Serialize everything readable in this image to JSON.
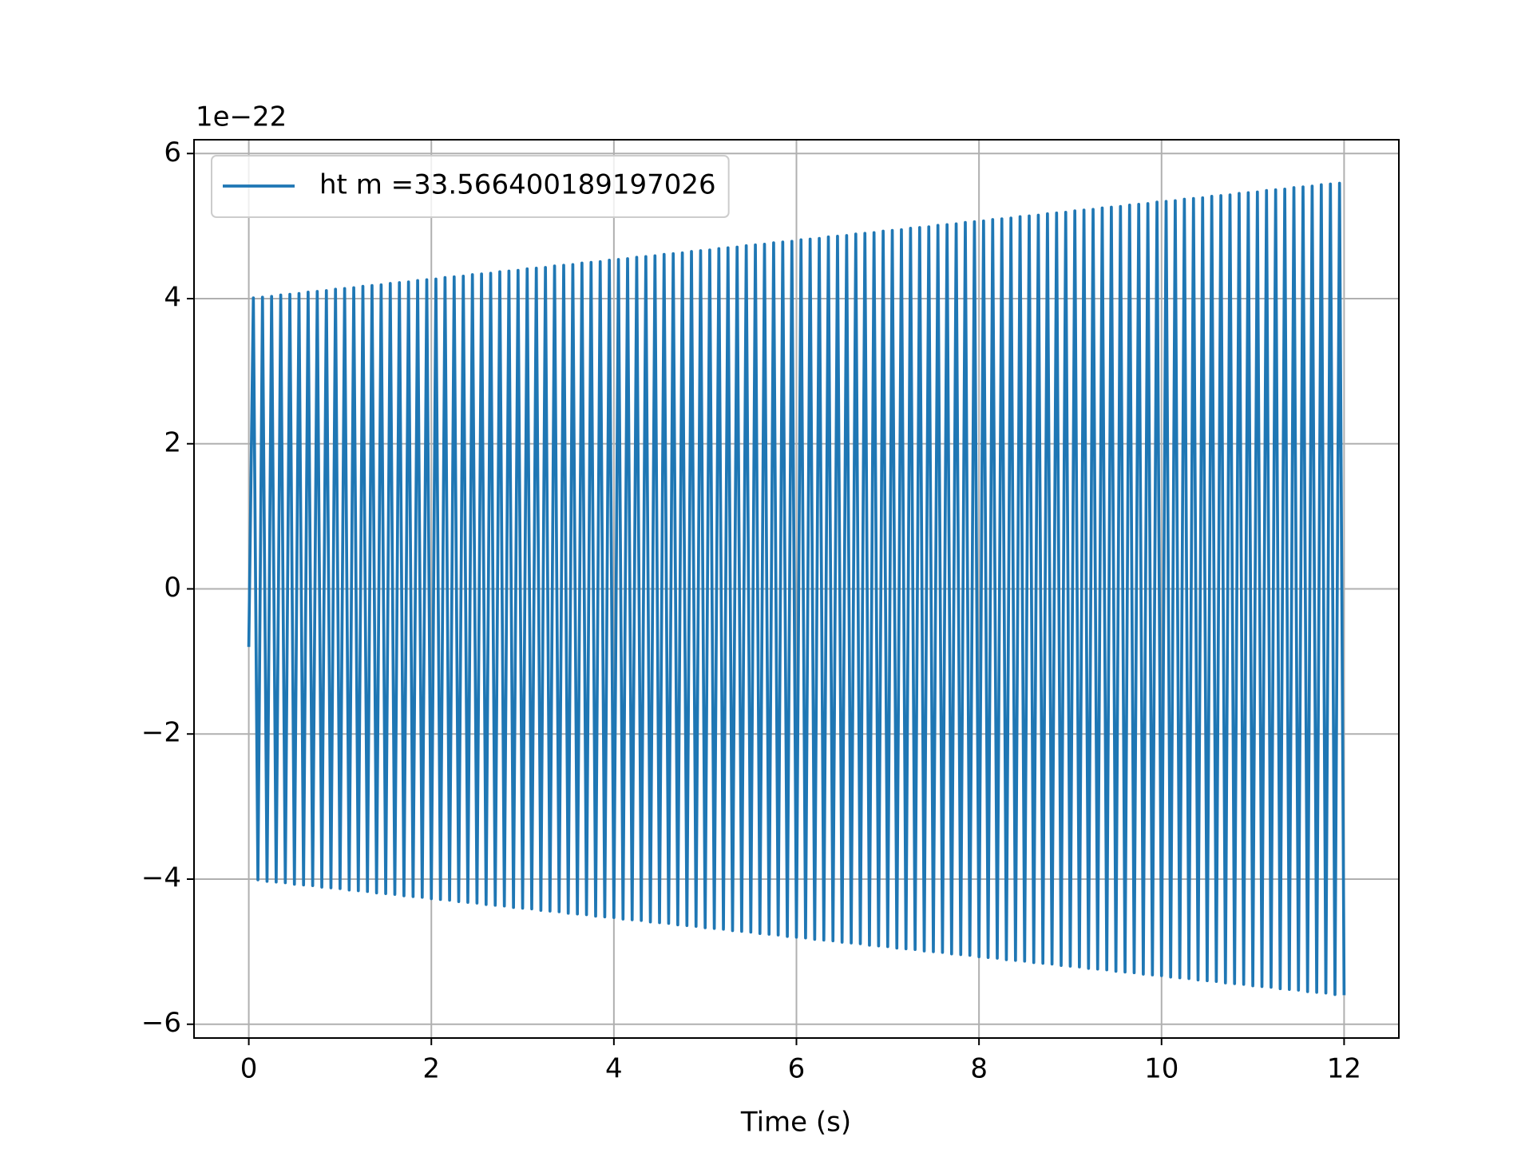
{
  "chart_data": {
    "type": "line",
    "x_label": "Time (s)",
    "y_offset_label": "1e−22",
    "xlim": [
      -0.6,
      12.6
    ],
    "ylim": [
      -6.19,
      6.19
    ],
    "xticks": [
      0,
      2,
      4,
      6,
      8,
      10,
      12
    ],
    "yticks": [
      {
        "value": -6,
        "label": "−6"
      },
      {
        "value": -4,
        "label": "−4"
      },
      {
        "value": -2,
        "label": "−2"
      },
      0,
      2,
      4,
      6
    ],
    "grid": true,
    "legend": "upper left",
    "series": [
      {
        "name": "ht m =33.566400189197026",
        "color": "#1f77b4",
        "x": [
          0,
          0.05,
          0.1,
          0.15,
          0.2,
          0.25,
          0.3,
          0.35,
          0.4,
          0.45,
          0.5,
          0.55,
          0.6,
          0.65,
          0.7,
          0.75,
          0.8,
          0.85,
          0.9,
          0.95,
          1,
          1.05,
          1.1,
          1.15,
          1.2,
          1.25,
          1.3,
          1.35,
          1.4,
          1.45,
          1.5,
          1.55,
          1.6,
          1.65,
          1.7,
          1.75,
          1.8,
          1.85,
          1.9,
          1.95,
          2,
          2.05,
          2.1,
          2.15,
          2.2,
          2.25,
          2.3,
          2.35,
          2.4,
          2.45,
          2.5,
          2.55,
          2.6,
          2.65,
          2.7,
          2.75,
          2.8,
          2.85,
          2.9,
          2.95,
          3,
          3.05,
          3.1,
          3.15,
          3.2,
          3.25,
          3.3,
          3.35,
          3.4,
          3.45,
          3.5,
          3.55,
          3.6,
          3.65,
          3.7,
          3.75,
          3.8,
          3.85,
          3.9,
          3.95,
          4,
          4.05,
          4.1,
          4.15,
          4.2,
          4.25,
          4.3,
          4.35,
          4.4,
          4.45,
          4.5,
          4.55,
          4.6,
          4.65,
          4.7,
          4.75,
          4.8,
          4.85,
          4.9,
          4.95,
          5,
          5.05,
          5.1,
          5.15,
          5.2,
          5.25,
          5.3,
          5.35,
          5.4,
          5.45,
          5.5,
          5.55,
          5.6,
          5.65,
          5.7,
          5.75,
          5.8,
          5.85,
          5.9,
          5.95,
          6,
          6.05,
          6.1,
          6.15,
          6.2,
          6.25,
          6.3,
          6.35,
          6.4,
          6.45,
          6.5,
          6.55,
          6.6,
          6.65,
          6.7,
          6.75,
          6.8,
          6.85,
          6.9,
          6.95,
          7,
          7.05,
          7.1,
          7.15,
          7.2,
          7.25,
          7.3,
          7.35,
          7.4,
          7.45,
          7.5,
          7.55,
          7.6,
          7.65,
          7.7,
          7.75,
          7.8,
          7.85,
          7.9,
          7.95,
          8,
          8.05,
          8.1,
          8.15,
          8.2,
          8.25,
          8.3,
          8.35,
          8.4,
          8.45,
          8.5,
          8.55,
          8.6,
          8.65,
          8.7,
          8.75,
          8.8,
          8.85,
          8.9,
          8.95,
          9,
          9.05,
          9.1,
          9.15,
          9.2,
          9.25,
          9.3,
          9.35,
          9.4,
          9.45,
          9.5,
          9.55,
          9.6,
          9.65,
          9.7,
          9.75,
          9.8,
          9.85,
          9.9,
          9.95,
          10,
          10.05,
          10.1,
          10.15,
          10.2,
          10.25,
          10.3,
          10.35,
          10.4,
          10.45,
          10.5,
          10.55,
          10.6,
          10.65,
          10.7,
          10.75,
          10.8,
          10.85,
          10.9,
          10.95,
          11,
          11.05,
          11.1,
          11.15,
          11.2,
          11.25,
          11.3,
          11.35,
          11.4,
          11.45,
          11.5,
          11.55,
          11.6,
          11.65,
          11.7,
          11.75,
          11.8,
          11.85,
          11.9,
          11.95,
          12
        ],
        "values": [
          -0.8,
          4.01,
          -4.01,
          4.02,
          -4.03,
          4.03,
          -4.04,
          4.05,
          -4.05,
          4.06,
          -4.07,
          4.07,
          -4.08,
          4.09,
          -4.09,
          4.1,
          -4.11,
          4.11,
          -4.12,
          4.13,
          -4.13,
          4.14,
          -4.15,
          4.15,
          -4.16,
          4.17,
          -4.17,
          4.18,
          -4.19,
          4.19,
          -4.2,
          4.21,
          -4.21,
          4.22,
          -4.23,
          4.23,
          -4.24,
          4.25,
          -4.25,
          4.26,
          -4.27,
          4.27,
          -4.28,
          4.29,
          -4.29,
          4.3,
          -4.31,
          4.31,
          -4.32,
          4.33,
          -4.33,
          4.34,
          -4.35,
          4.35,
          -4.36,
          4.37,
          -4.37,
          4.38,
          -4.39,
          4.39,
          -4.4,
          4.41,
          -4.41,
          4.42,
          -4.43,
          4.43,
          -4.44,
          4.45,
          -4.45,
          4.46,
          -4.47,
          4.47,
          -4.48,
          4.49,
          -4.49,
          4.5,
          -4.51,
          4.51,
          -4.52,
          4.53,
          -4.53,
          4.54,
          -4.55,
          4.55,
          -4.56,
          4.57,
          -4.57,
          4.58,
          -4.59,
          4.59,
          -4.6,
          4.61,
          -4.61,
          4.62,
          -4.63,
          4.63,
          -4.64,
          4.65,
          -4.65,
          4.66,
          -4.67,
          4.67,
          -4.68,
          4.69,
          -4.69,
          4.7,
          -4.71,
          4.71,
          -4.72,
          4.73,
          -4.73,
          4.74,
          -4.75,
          4.75,
          -4.76,
          4.77,
          -4.77,
          4.78,
          -4.79,
          4.79,
          -4.8,
          4.81,
          -4.81,
          4.82,
          -4.83,
          4.83,
          -4.84,
          4.85,
          -4.85,
          4.86,
          -4.87,
          4.87,
          -4.88,
          4.89,
          -4.89,
          4.9,
          -4.91,
          4.91,
          -4.92,
          4.93,
          -4.93,
          4.94,
          -4.95,
          4.95,
          -4.96,
          4.97,
          -4.97,
          4.98,
          -4.99,
          4.99,
          -5,
          5.01,
          -5.01,
          5.02,
          -5.03,
          5.03,
          -5.04,
          5.05,
          -5.05,
          5.06,
          -5.07,
          5.07,
          -5.08,
          5.09,
          -5.09,
          5.1,
          -5.11,
          5.11,
          -5.12,
          5.13,
          -5.13,
          5.14,
          -5.15,
          5.15,
          -5.16,
          5.17,
          -5.17,
          5.18,
          -5.19,
          5.19,
          -5.2,
          5.21,
          -5.21,
          5.22,
          -5.23,
          5.23,
          -5.24,
          5.25,
          -5.25,
          5.26,
          -5.27,
          5.27,
          -5.28,
          5.29,
          -5.29,
          5.3,
          -5.31,
          5.31,
          -5.32,
          5.33,
          -5.33,
          5.34,
          -5.35,
          5.35,
          -5.36,
          5.37,
          -5.37,
          5.38,
          -5.39,
          5.39,
          -5.4,
          5.41,
          -5.41,
          5.42,
          -5.43,
          5.43,
          -5.44,
          5.45,
          -5.45,
          5.46,
          -5.47,
          5.47,
          -5.48,
          5.49,
          -5.49,
          5.5,
          -5.51,
          5.51,
          -5.52,
          5.53,
          -5.53,
          5.54,
          -5.55,
          5.55,
          -5.56,
          5.57,
          -5.57,
          5.58,
          -5.59,
          5.59,
          -5.6
        ]
      }
    ]
  }
}
